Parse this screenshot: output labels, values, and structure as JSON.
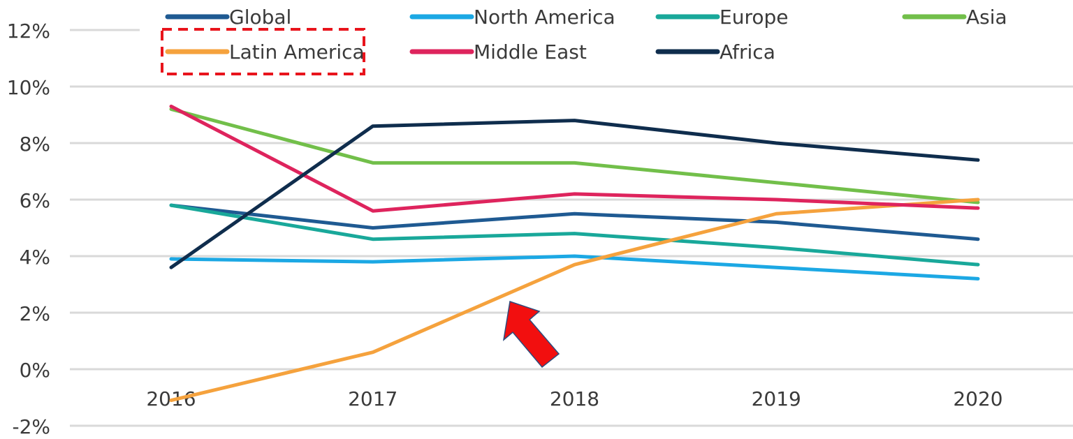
{
  "chart_data": {
    "type": "line",
    "categories": [
      "2016",
      "2017",
      "2018",
      "2019",
      "2020"
    ],
    "series": [
      {
        "name": "Global",
        "color": "#1f5a92",
        "values": [
          5.8,
          5.0,
          5.5,
          5.2,
          4.6
        ]
      },
      {
        "name": "North America",
        "color": "#1ca8e4",
        "values": [
          3.9,
          3.8,
          4.0,
          3.6,
          3.2
        ]
      },
      {
        "name": "Europe",
        "color": "#19a89a",
        "values": [
          5.8,
          4.6,
          4.8,
          4.3,
          3.7
        ]
      },
      {
        "name": "Asia",
        "color": "#72bf4a",
        "values": [
          9.2,
          7.3,
          7.3,
          6.6,
          5.9
        ]
      },
      {
        "name": "Latin America",
        "color": "#f5a23d",
        "values": [
          -1.1,
          0.6,
          3.7,
          5.5,
          6.0
        ]
      },
      {
        "name": "Middle East",
        "color": "#de245d",
        "values": [
          9.3,
          5.6,
          6.2,
          6.0,
          5.7
        ]
      },
      {
        "name": "Africa",
        "color": "#0f2d4d",
        "values": [
          3.6,
          8.6,
          8.8,
          8.0,
          7.4
        ]
      }
    ],
    "ylim": [
      -2,
      12
    ],
    "yticks": [
      {
        "value": -2,
        "label": "-2%"
      },
      {
        "value": 0,
        "label": "0%"
      },
      {
        "value": 2,
        "label": "2%"
      },
      {
        "value": 4,
        "label": "4%"
      },
      {
        "value": 6,
        "label": "6%"
      },
      {
        "value": 8,
        "label": "8%"
      },
      {
        "value": 10,
        "label": "10%"
      },
      {
        "value": 12,
        "label": "12%"
      }
    ],
    "grid": true
  }
}
